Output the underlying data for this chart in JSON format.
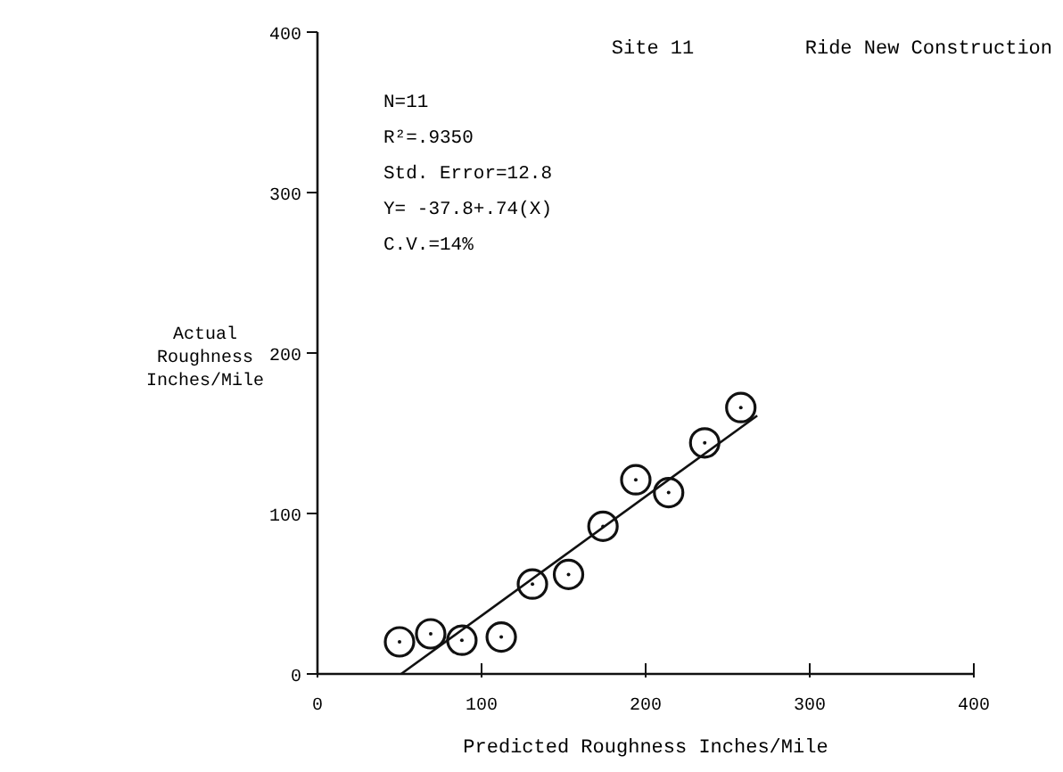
{
  "chart_data": {
    "type": "scatter",
    "title": "Site 11",
    "subtitle": "Ride New Construction",
    "xlabel": "Predicted Roughness Inches/Mile",
    "ylabel": "Actual Roughness Inches/Mile",
    "annotations": [
      "N=11",
      "R²=.9350",
      "Std. Error=12.8",
      "Y= -37.8+.74(X)",
      "C.V.=14%"
    ],
    "xlim": [
      0,
      400
    ],
    "ylim": [
      0,
      400
    ],
    "xticks": [
      0,
      100,
      200,
      300,
      400
    ],
    "yticks": [
      0,
      100,
      200,
      300,
      400
    ],
    "grid": false,
    "series": [
      {
        "marker": "circle",
        "color": "#111111",
        "x": [
          50,
          69,
          88,
          112,
          131,
          153,
          174,
          194,
          214,
          236,
          258
        ],
        "values": [
          20,
          25,
          21,
          23,
          56,
          62,
          92,
          121,
          113,
          144,
          166
        ]
      },
      {
        "type": "line",
        "line_style": "solid",
        "color": "#111111",
        "x": [
          51,
          268
        ],
        "values": [
          0,
          161
        ]
      }
    ]
  }
}
